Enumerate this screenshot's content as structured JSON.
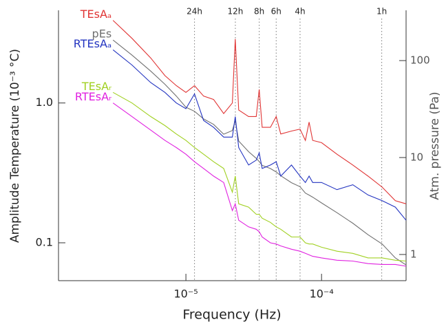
{
  "chart_data": {
    "type": "line",
    "xlabel": "Frequency (Hz)",
    "ylabel": "Amplitude Temperature (10⁻³ °C)",
    "y2label": "Atm. pressure (Pa)",
    "xscale": "log",
    "yscale": "log",
    "y2scale": "log",
    "xlim": [
      1.15e-06,
      0.00042
    ],
    "ylim": [
      0.0536,
      4.6
    ],
    "y2lim": [
      0.537,
      330
    ],
    "xticks": [
      {
        "value": 1e-05,
        "label": "10⁻⁵"
      },
      {
        "value": 0.0001,
        "label": "10⁻⁴"
      }
    ],
    "yticks": [
      0.1,
      {
        "value": 1,
        "label": "1.0"
      }
    ],
    "y2ticks": [
      1,
      10,
      100
    ],
    "annotations": [
      {
        "value": 1.157e-05,
        "label": "24h"
      },
      {
        "value": 2.315e-05,
        "label": "12h"
      },
      {
        "value": 3.472e-05,
        "label": "8h"
      },
      {
        "value": 4.63e-05,
        "label": "6h"
      },
      {
        "value": 6.944e-05,
        "label": "4h"
      },
      {
        "value": 0.0002778,
        "label": "1h"
      }
    ],
    "x": [
      2.9e-06,
      4e-06,
      5.5e-06,
      7e-06,
      8.5e-06,
      1e-05,
      1.157e-05,
      1.35e-05,
      1.6e-05,
      1.9e-05,
      2.2e-05,
      2.31e-05,
      2.45e-05,
      2.9e-05,
      3.3e-05,
      3.47e-05,
      3.65e-05,
      4.2e-05,
      4.63e-05,
      5e-05,
      6e-05,
      6.94e-05,
      7.6e-05,
      8.1e-05,
      8.6e-05,
      0.0001,
      0.00013,
      0.00017,
      0.00022,
      0.00028,
      0.00035,
      0.00042
    ],
    "series": [
      {
        "name": "TEsAₐ",
        "color": "#e03333",
        "values": [
          3.9,
          2.9,
          2.1,
          1.57,
          1.33,
          1.19,
          1.33,
          1.12,
          1.06,
          0.84,
          1.0,
          2.87,
          0.89,
          0.8,
          0.8,
          1.25,
          0.67,
          0.67,
          0.8,
          0.6,
          0.63,
          0.65,
          0.54,
          0.73,
          0.54,
          0.52,
          0.43,
          0.36,
          0.3,
          0.25,
          0.2,
          0.19
        ]
      },
      {
        "name": "pEs",
        "color": "#707070",
        "axis": "y2",
        "values": [
          163,
          114,
          78,
          57,
          43,
          33,
          30,
          25,
          22,
          17.4,
          19,
          24,
          14.8,
          11.5,
          9.8,
          9.1,
          8.3,
          7.7,
          7.1,
          6.5,
          5.5,
          5.0,
          4.3,
          4.1,
          3.9,
          3.4,
          2.7,
          2.1,
          1.6,
          1.28,
          0.92,
          0.78
        ]
      },
      {
        "name": "RTEsAₐ",
        "color": "#2233c0",
        "values": [
          2.4,
          1.87,
          1.4,
          1.19,
          1.0,
          0.91,
          1.16,
          0.75,
          0.67,
          0.57,
          0.57,
          0.8,
          0.48,
          0.36,
          0.39,
          0.44,
          0.34,
          0.36,
          0.38,
          0.3,
          0.36,
          0.3,
          0.27,
          0.3,
          0.27,
          0.27,
          0.24,
          0.26,
          0.22,
          0.2,
          0.18,
          0.145
        ]
      },
      {
        "name": "TEsAᵣ",
        "color": "#a0d020",
        "values": [
          1.19,
          1.0,
          0.8,
          0.69,
          0.6,
          0.54,
          0.48,
          0.43,
          0.38,
          0.34,
          0.23,
          0.3,
          0.19,
          0.18,
          0.16,
          0.16,
          0.15,
          0.14,
          0.13,
          0.125,
          0.11,
          0.11,
          0.1,
          0.098,
          0.098,
          0.093,
          0.087,
          0.084,
          0.078,
          0.078,
          0.075,
          0.074
        ]
      },
      {
        "name": "RTEsAᵣ",
        "color": "#e020e0",
        "values": [
          1.0,
          0.8,
          0.64,
          0.54,
          0.48,
          0.43,
          0.38,
          0.34,
          0.3,
          0.27,
          0.17,
          0.19,
          0.145,
          0.13,
          0.125,
          0.12,
          0.11,
          0.1,
          0.098,
          0.095,
          0.09,
          0.087,
          0.084,
          0.082,
          0.08,
          0.078,
          0.075,
          0.074,
          0.071,
          0.07,
          0.07,
          0.068
        ]
      }
    ]
  }
}
